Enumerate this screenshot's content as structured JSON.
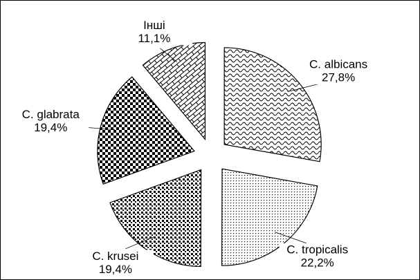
{
  "chart_data": {
    "type": "pie",
    "categories": [
      "C. albicans",
      "C. tropicalis",
      "C. krusei",
      "C. glabrata",
      "Інші"
    ],
    "values": [
      27.8,
      22.2,
      19.4,
      19.4,
      11.1
    ],
    "value_labels": [
      "27,8%",
      "22,2%",
      "19,4%",
      "19,4%",
      "11,1%"
    ]
  }
}
